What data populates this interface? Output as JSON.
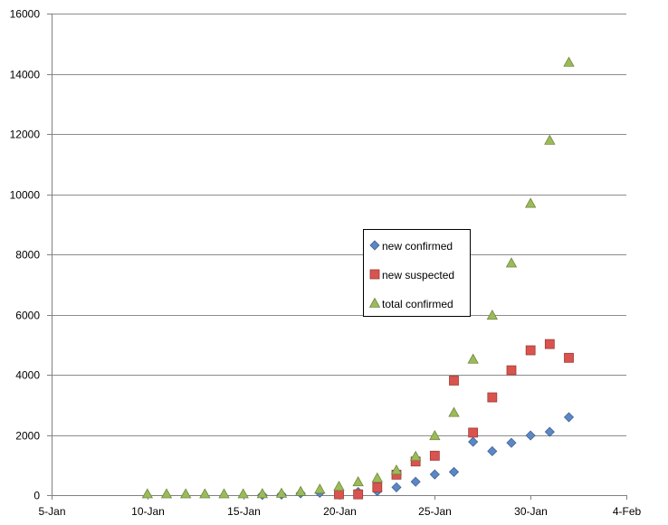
{
  "chart_data": {
    "type": "scatter",
    "title": "",
    "xlabel": "",
    "ylabel": "",
    "xlim": [
      "5-Jan",
      "4-Feb"
    ],
    "ylim": [
      0,
      16000
    ],
    "x_ticks": [
      "5-Jan",
      "10-Jan",
      "15-Jan",
      "20-Jan",
      "25-Jan",
      "30-Jan",
      "4-Feb"
    ],
    "y_ticks": [
      "0",
      "2000",
      "4000",
      "6000",
      "8000",
      "10000",
      "12000",
      "14000",
      "16000"
    ],
    "grid": "horizontal",
    "legend_position": "center",
    "series": [
      {
        "name": "new confirmed",
        "marker": "diamond",
        "color": "#5b87c6",
        "x": [
          "16-Jan",
          "17-Jan",
          "18-Jan",
          "19-Jan",
          "20-Jan",
          "21-Jan",
          "22-Jan",
          "23-Jan",
          "24-Jan",
          "25-Jan",
          "26-Jan",
          "27-Jan",
          "28-Jan",
          "29-Jan",
          "30-Jan",
          "31-Jan",
          "1-Feb"
        ],
        "y": [
          4,
          17,
          59,
          77,
          72,
          105,
          131,
          259,
          444,
          688,
          769,
          1771,
          1459,
          1737,
          1982,
          2102,
          2590
        ]
      },
      {
        "name": "new suspected",
        "marker": "square",
        "color": "#d9534f",
        "x": [
          "20-Jan",
          "21-Jan",
          "22-Jan",
          "23-Jan",
          "24-Jan",
          "25-Jan",
          "26-Jan",
          "27-Jan",
          "28-Jan",
          "29-Jan",
          "30-Jan",
          "31-Jan",
          "1-Feb"
        ],
        "y": [
          27,
          26,
          257,
          680,
          1118,
          1309,
          3806,
          2077,
          3248,
          4148,
          4812,
          5019,
          4562
        ]
      },
      {
        "name": "total confirmed",
        "marker": "triangle",
        "color": "#9bbb59",
        "x": [
          "10-Jan",
          "11-Jan",
          "12-Jan",
          "13-Jan",
          "14-Jan",
          "15-Jan",
          "16-Jan",
          "17-Jan",
          "18-Jan",
          "19-Jan",
          "20-Jan",
          "21-Jan",
          "22-Jan",
          "23-Jan",
          "24-Jan",
          "25-Jan",
          "26-Jan",
          "27-Jan",
          "28-Jan",
          "29-Jan",
          "30-Jan",
          "31-Jan",
          "1-Feb"
        ],
        "y": [
          41,
          41,
          41,
          41,
          41,
          41,
          45,
          62,
          121,
          198,
          291,
          440,
          571,
          830,
          1287,
          1975,
          2744,
          4515,
          5974,
          7711,
          9692,
          11791,
          14380
        ]
      }
    ]
  }
}
